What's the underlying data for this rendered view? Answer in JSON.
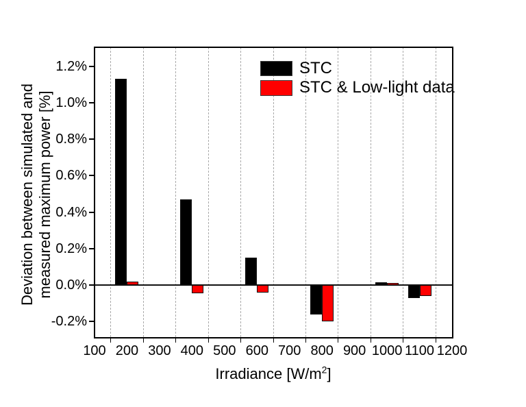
{
  "figure": {
    "background": "#ffffff"
  },
  "chart_data": {
    "type": "bar",
    "title": "",
    "xlabel": "Irradiance [W/m²]",
    "xlabel_parts": {
      "base": "Irradiance [W/m",
      "sup": "2",
      "end": "]"
    },
    "ylabel": "Deviation between simulated and measured maximum power [%]",
    "ylabel_lines": [
      "Deviation between simulated and",
      "measured maximum power [%]"
    ],
    "categories": [
      200,
      400,
      600,
      800,
      1000,
      1100
    ],
    "series": [
      {
        "name": "STC",
        "color": "#000000",
        "values": [
          1.13,
          0.47,
          0.15,
          -0.16,
          0.014,
          -0.07
        ]
      },
      {
        "name": "STC & Low-light data",
        "color": "#ff0000",
        "values": [
          0.02,
          -0.045,
          -0.04,
          -0.2,
          0.01,
          -0.06
        ]
      }
    ],
    "x_axis": {
      "tick_labels": [
        "100",
        "200",
        "300",
        "400",
        "500",
        "600",
        "700",
        "800",
        "900",
        "1000",
        "1100",
        "1200"
      ],
      "tick_values": [
        100,
        200,
        300,
        400,
        500,
        600,
        700,
        800,
        900,
        1000,
        1100,
        1200
      ],
      "grid_values": [
        150,
        250,
        350,
        450,
        550,
        650,
        750,
        850,
        950,
        1050,
        1150
      ],
      "lim": [
        100,
        1200
      ]
    },
    "y_axis": {
      "tick_labels": [
        "1.2%",
        "1.0%",
        "0.8%",
        "0.6%",
        "0.4%",
        "0.2%",
        "0.0%",
        "-0.2%"
      ],
      "tick_values": [
        1.2,
        1.0,
        0.8,
        0.6,
        0.4,
        0.2,
        0.0,
        -0.2
      ],
      "lim": [
        -0.29,
        1.3
      ],
      "unit": "%"
    },
    "grid": "vertical-dashed-between-ticks",
    "legend_position": "top-right-inside"
  }
}
